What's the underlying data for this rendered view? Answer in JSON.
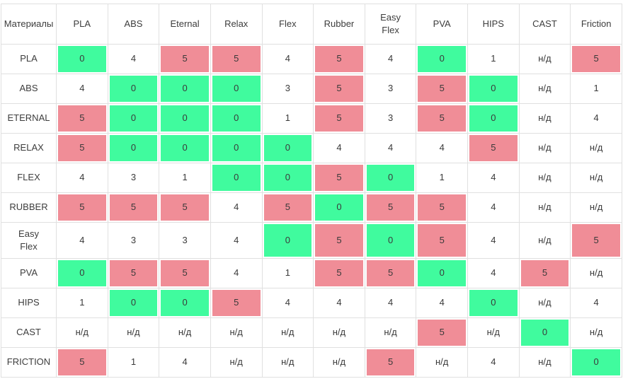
{
  "colors": {
    "green": "#40fb9e",
    "red": "#f08d97",
    "grid": "#e0e0e0",
    "header_text": "#3d3d3d",
    "cell_text": "#3a3a3a",
    "background": "#ffffff"
  },
  "chart_data": {
    "type": "heatmap",
    "title": "",
    "corner_header": "Материалы",
    "columns": [
      "PLA",
      "ABS",
      "Eternal",
      "Relax",
      "Flex",
      "Rubber",
      "Easy Flex",
      "PVA",
      "HIPS",
      "CAST",
      "Friction"
    ],
    "rows": [
      "PLA",
      "ABS",
      "ETERNAL",
      "RELAX",
      "FLEX",
      "RUBBER",
      "Easy Flex",
      "PVA",
      "HIPS",
      "CAST",
      "FRICTION"
    ],
    "values": [
      [
        "0",
        "4",
        "5",
        "5",
        "4",
        "5",
        "4",
        "0",
        "1",
        "н/д",
        "5"
      ],
      [
        "4",
        "0",
        "0",
        "0",
        "3",
        "5",
        "3",
        "5",
        "0",
        "н/д",
        "1"
      ],
      [
        "5",
        "0",
        "0",
        "0",
        "1",
        "5",
        "3",
        "5",
        "0",
        "н/д",
        "4"
      ],
      [
        "5",
        "0",
        "0",
        "0",
        "0",
        "4",
        "4",
        "4",
        "5",
        "н/д",
        "н/д"
      ],
      [
        "4",
        "3",
        "1",
        "0",
        "0",
        "5",
        "0",
        "1",
        "4",
        "н/д",
        "н/д"
      ],
      [
        "5",
        "5",
        "5",
        "4",
        "5",
        "0",
        "5",
        "5",
        "4",
        "н/д",
        "н/д"
      ],
      [
        "4",
        "3",
        "3",
        "4",
        "0",
        "5",
        "0",
        "5",
        "4",
        "н/д",
        "5"
      ],
      [
        "0",
        "5",
        "5",
        "4",
        "1",
        "5",
        "5",
        "0",
        "4",
        "5",
        "н/д"
      ],
      [
        "1",
        "0",
        "0",
        "5",
        "4",
        "4",
        "4",
        "4",
        "0",
        "н/д",
        "4"
      ],
      [
        "н/д",
        "н/д",
        "н/д",
        "н/д",
        "н/д",
        "н/д",
        "н/д",
        "5",
        "н/д",
        "0",
        "н/д"
      ],
      [
        "5",
        "1",
        "4",
        "н/д",
        "н/д",
        "н/д",
        "5",
        "н/д",
        "4",
        "н/д",
        "0"
      ]
    ],
    "no_data_label": "н/д",
    "cell_color_rule": {
      "0": "green",
      "5": "red",
      "other": "white"
    },
    "legend": "none",
    "grid": true
  }
}
